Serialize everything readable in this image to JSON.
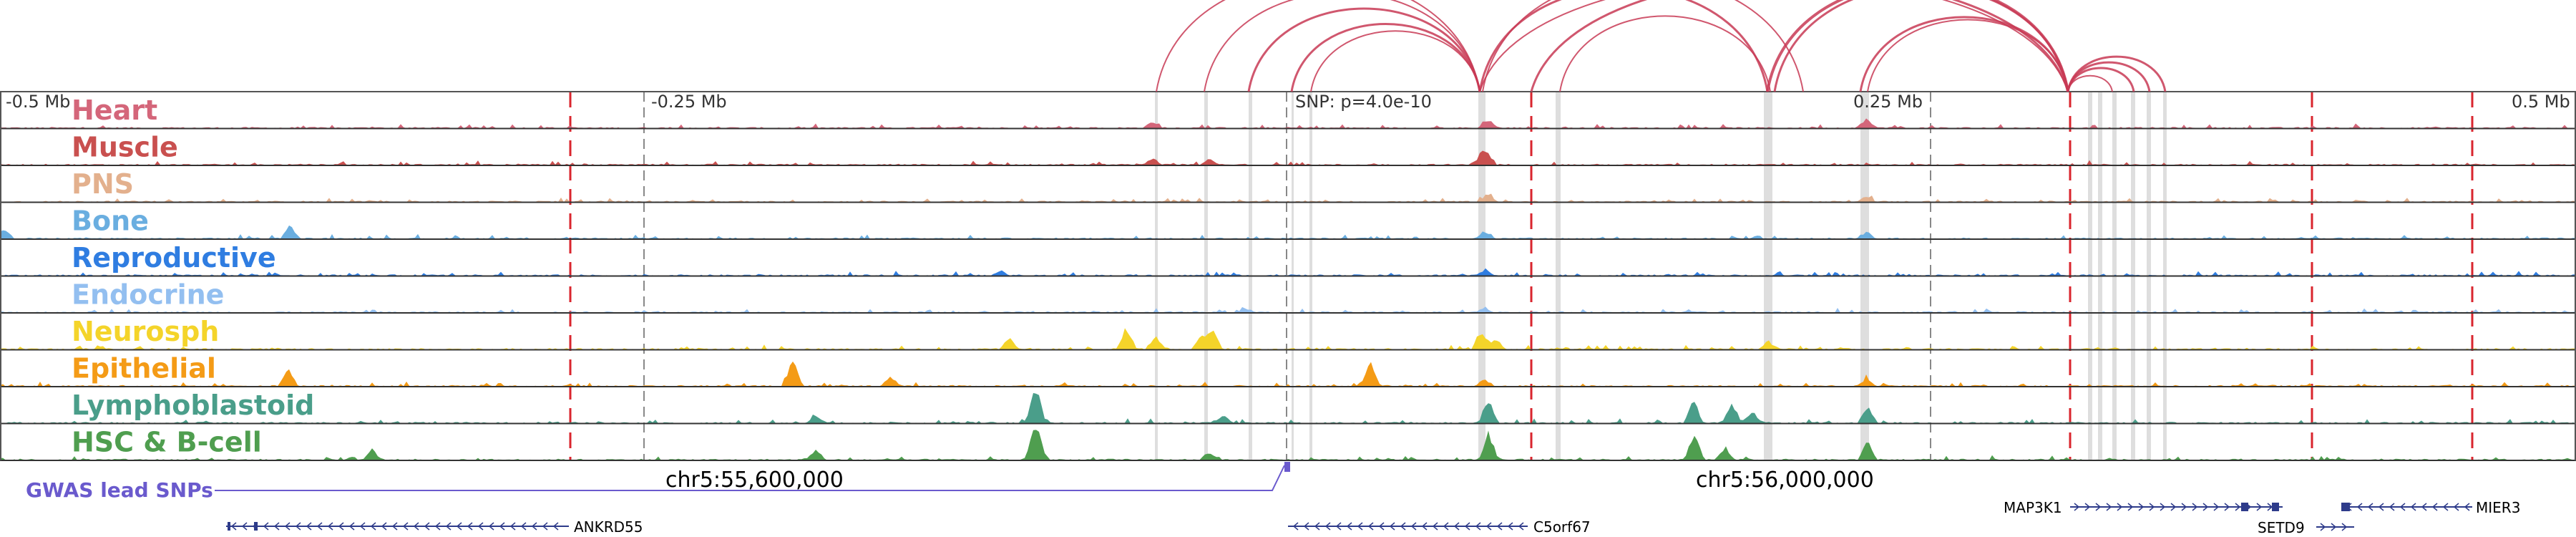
{
  "axis": {
    "ticks": [
      {
        "label": "-0.5 Mb",
        "pos": -0.5
      },
      {
        "label": "-0.25 Mb",
        "pos": -0.25
      },
      {
        "label": "SNP: p=4.0e-10",
        "pos": 0.0
      },
      {
        "label": "0.25 Mb",
        "pos": 0.25
      },
      {
        "label": "0.5 Mb",
        "pos": 0.5
      }
    ]
  },
  "tracks": [
    {
      "name": "Heart",
      "color": "#d4667a"
    },
    {
      "name": "Muscle",
      "color": "#c9504f"
    },
    {
      "name": "PNS",
      "color": "#e3b08d"
    },
    {
      "name": "Bone",
      "color": "#6aaee0"
    },
    {
      "name": "Reproductive",
      "color": "#2f7de1"
    },
    {
      "name": "Endocrine",
      "color": "#93bff0"
    },
    {
      "name": "Neurosph",
      "color": "#f4d42a"
    },
    {
      "name": "Epithelial",
      "color": "#f49b16"
    },
    {
      "name": "Lymphoblastoid",
      "color": "#4a9e8a"
    },
    {
      "name": "HSC & B-cell",
      "color": "#4f9e4f"
    }
  ],
  "coordinates": [
    "chr5:55,600,000",
    "chr5:56,000,000"
  ],
  "gwas": {
    "label": "GWAS lead SNPs"
  },
  "genes": [
    {
      "name": "ANKRD55",
      "strand": "-"
    },
    {
      "name": "C5orf67",
      "strand": "-"
    },
    {
      "name": "MAP3K1",
      "strand": "+"
    },
    {
      "name": "SETD9",
      "strand": "+"
    },
    {
      "name": "MIER3",
      "strand": "-"
    }
  ],
  "colors": {
    "arc": "#c83a55",
    "boundary": "#d9252e",
    "highlight": "#d3d3d3",
    "gwas": "#6a5acd",
    "gene": "#2e3b8a"
  }
}
